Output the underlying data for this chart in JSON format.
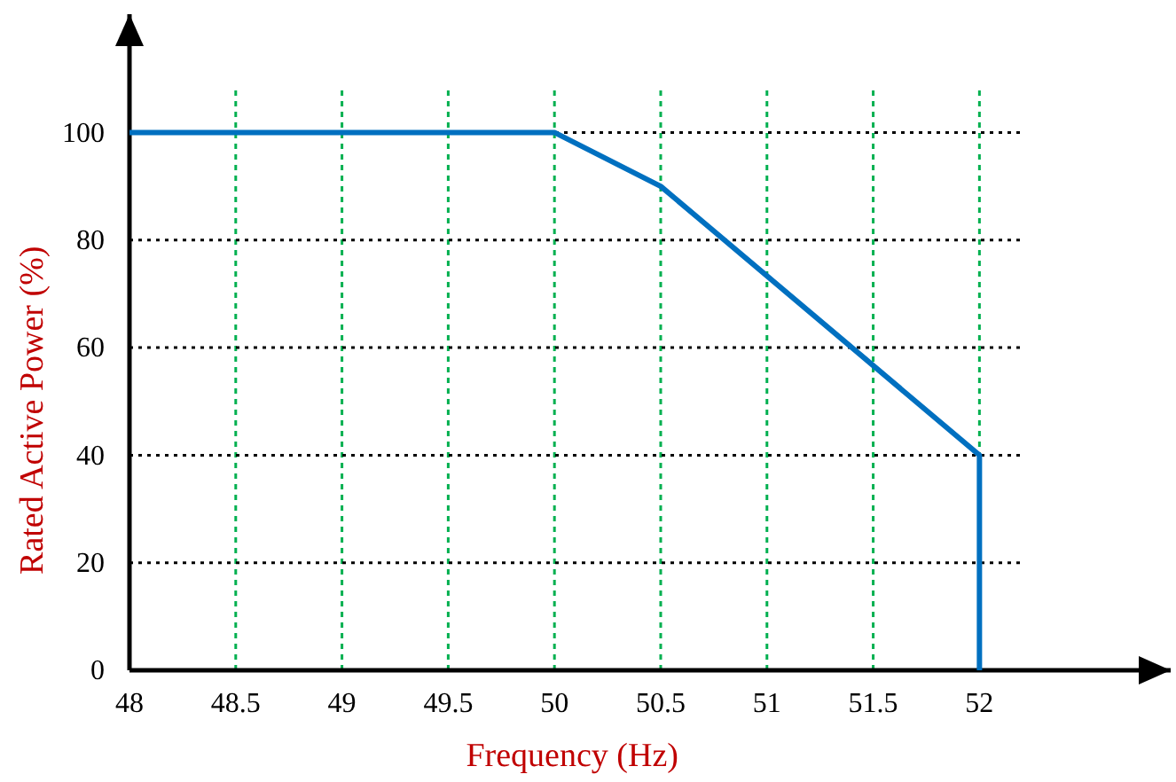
{
  "chart_data": {
    "type": "line",
    "xlabel": "Frequency (Hz)",
    "ylabel": "Rated Active Power (%)",
    "x": [
      48,
      50,
      50.5,
      52,
      52
    ],
    "series": [
      {
        "color": "#0070c0",
        "values": [
          100,
          100,
          90,
          40,
          0
        ]
      }
    ],
    "xlim": [
      48,
      52.9
    ],
    "ylim": [
      0,
      122
    ],
    "xticks": [
      48,
      48.5,
      49,
      49.5,
      50,
      50.5,
      51,
      51.5,
      52
    ],
    "yticks": [
      0,
      20,
      40,
      60,
      80,
      100
    ],
    "grid": true,
    "marker": "none",
    "line_style": "solid"
  }
}
